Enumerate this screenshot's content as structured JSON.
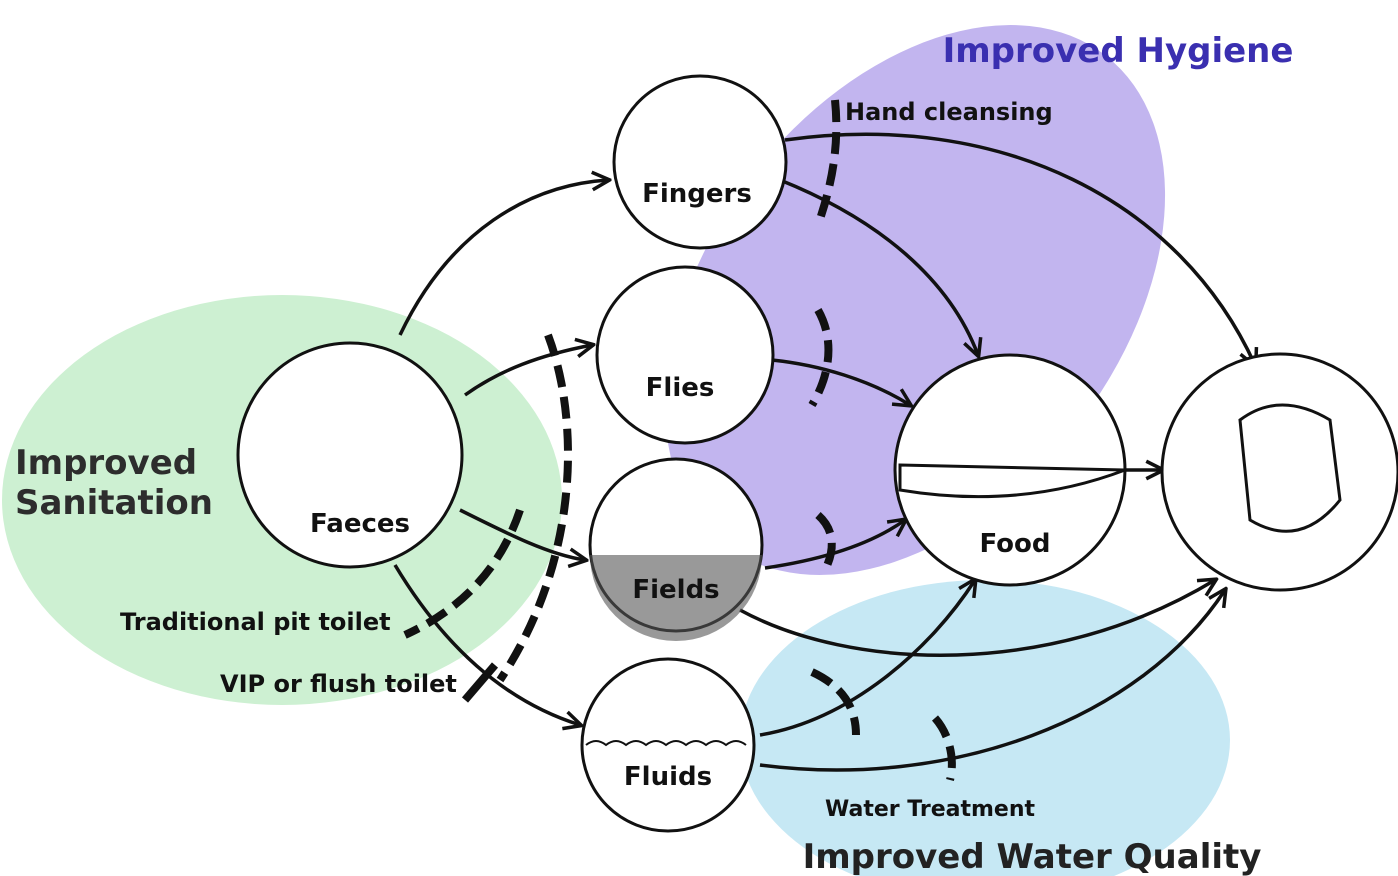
{
  "zones": {
    "hygiene": {
      "label": "Improved Hygiene"
    },
    "sanitation": {
      "label_lines": [
        "Improved",
        "Sanitation"
      ]
    },
    "water": {
      "label": "Improved Water Quality"
    }
  },
  "nodes": [
    {
      "label": "Faeces"
    },
    {
      "label": "Fingers"
    },
    {
      "label": "Flies"
    },
    {
      "label": "Fields"
    },
    {
      "label": "Fluids"
    },
    {
      "label": "Food"
    }
  ],
  "barriers": [
    {
      "label": "Hand cleansing"
    },
    {
      "label": "Traditional pit toilet"
    },
    {
      "label": "VIP or flush toilet"
    },
    {
      "label": "Water Treatment"
    }
  ]
}
